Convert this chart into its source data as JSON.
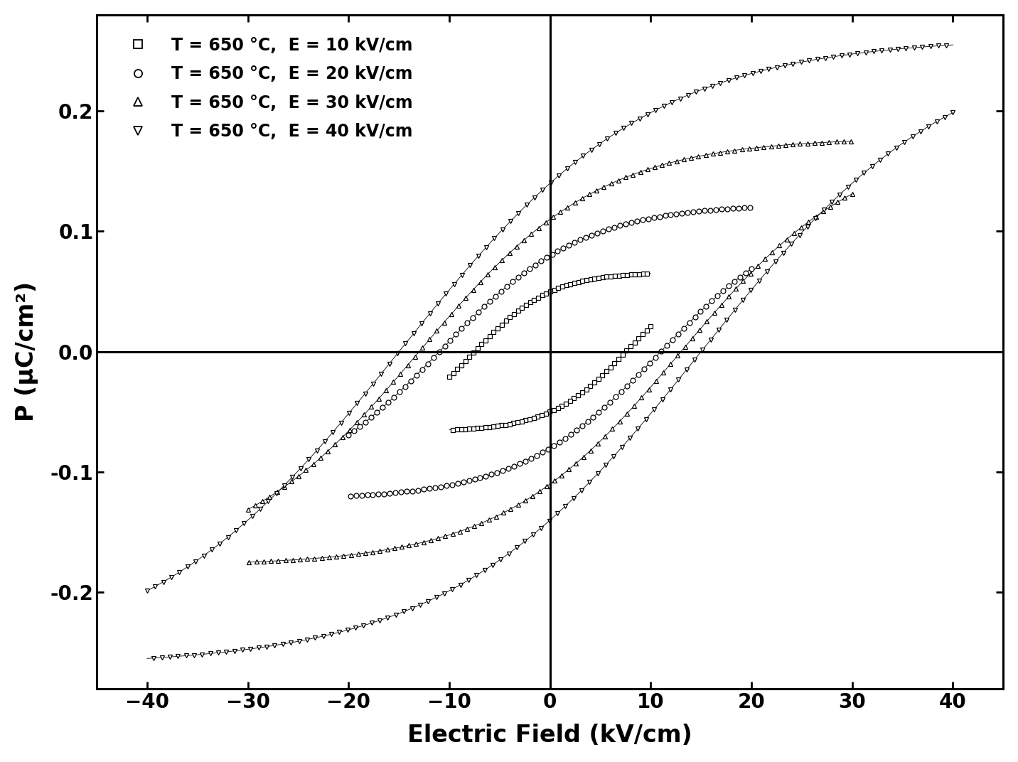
{
  "title": "",
  "xlabel": "Electric Field (kV/cm)",
  "ylabel": "P (μC/cm²)",
  "xlim": [
    -45,
    45
  ],
  "ylim": [
    -0.28,
    0.28
  ],
  "xticks": [
    -40,
    -30,
    -20,
    -10,
    0,
    10,
    20,
    30,
    40
  ],
  "yticks": [
    -0.2,
    -0.1,
    0.0,
    0.1,
    0.2
  ],
  "background_color": "#ffffff",
  "series": [
    {
      "label": "T = 650 °C,  E = 10 kV/cm",
      "E_max": 10,
      "P_max": 0.065,
      "P_r": 0.05,
      "E_c": 7.5,
      "marker": "s",
      "marker_size": 5,
      "n_markers": 50
    },
    {
      "label": "T = 650 °C,  E = 20 kV/cm",
      "E_max": 20,
      "P_max": 0.12,
      "P_r": 0.08,
      "E_c": 11.0,
      "marker": "o",
      "marker_size": 5,
      "n_markers": 70
    },
    {
      "label": "T = 650 °C,  E = 30 kV/cm",
      "E_max": 30,
      "P_max": 0.175,
      "P_r": 0.11,
      "E_c": 13.0,
      "marker": "^",
      "marker_size": 5,
      "n_markers": 80
    },
    {
      "label": "T = 650 °C,  E = 40 kV/cm",
      "E_max": 40,
      "P_max": 0.255,
      "P_r": 0.14,
      "E_c": 15.0,
      "marker": "v",
      "marker_size": 5,
      "n_markers": 100
    }
  ]
}
